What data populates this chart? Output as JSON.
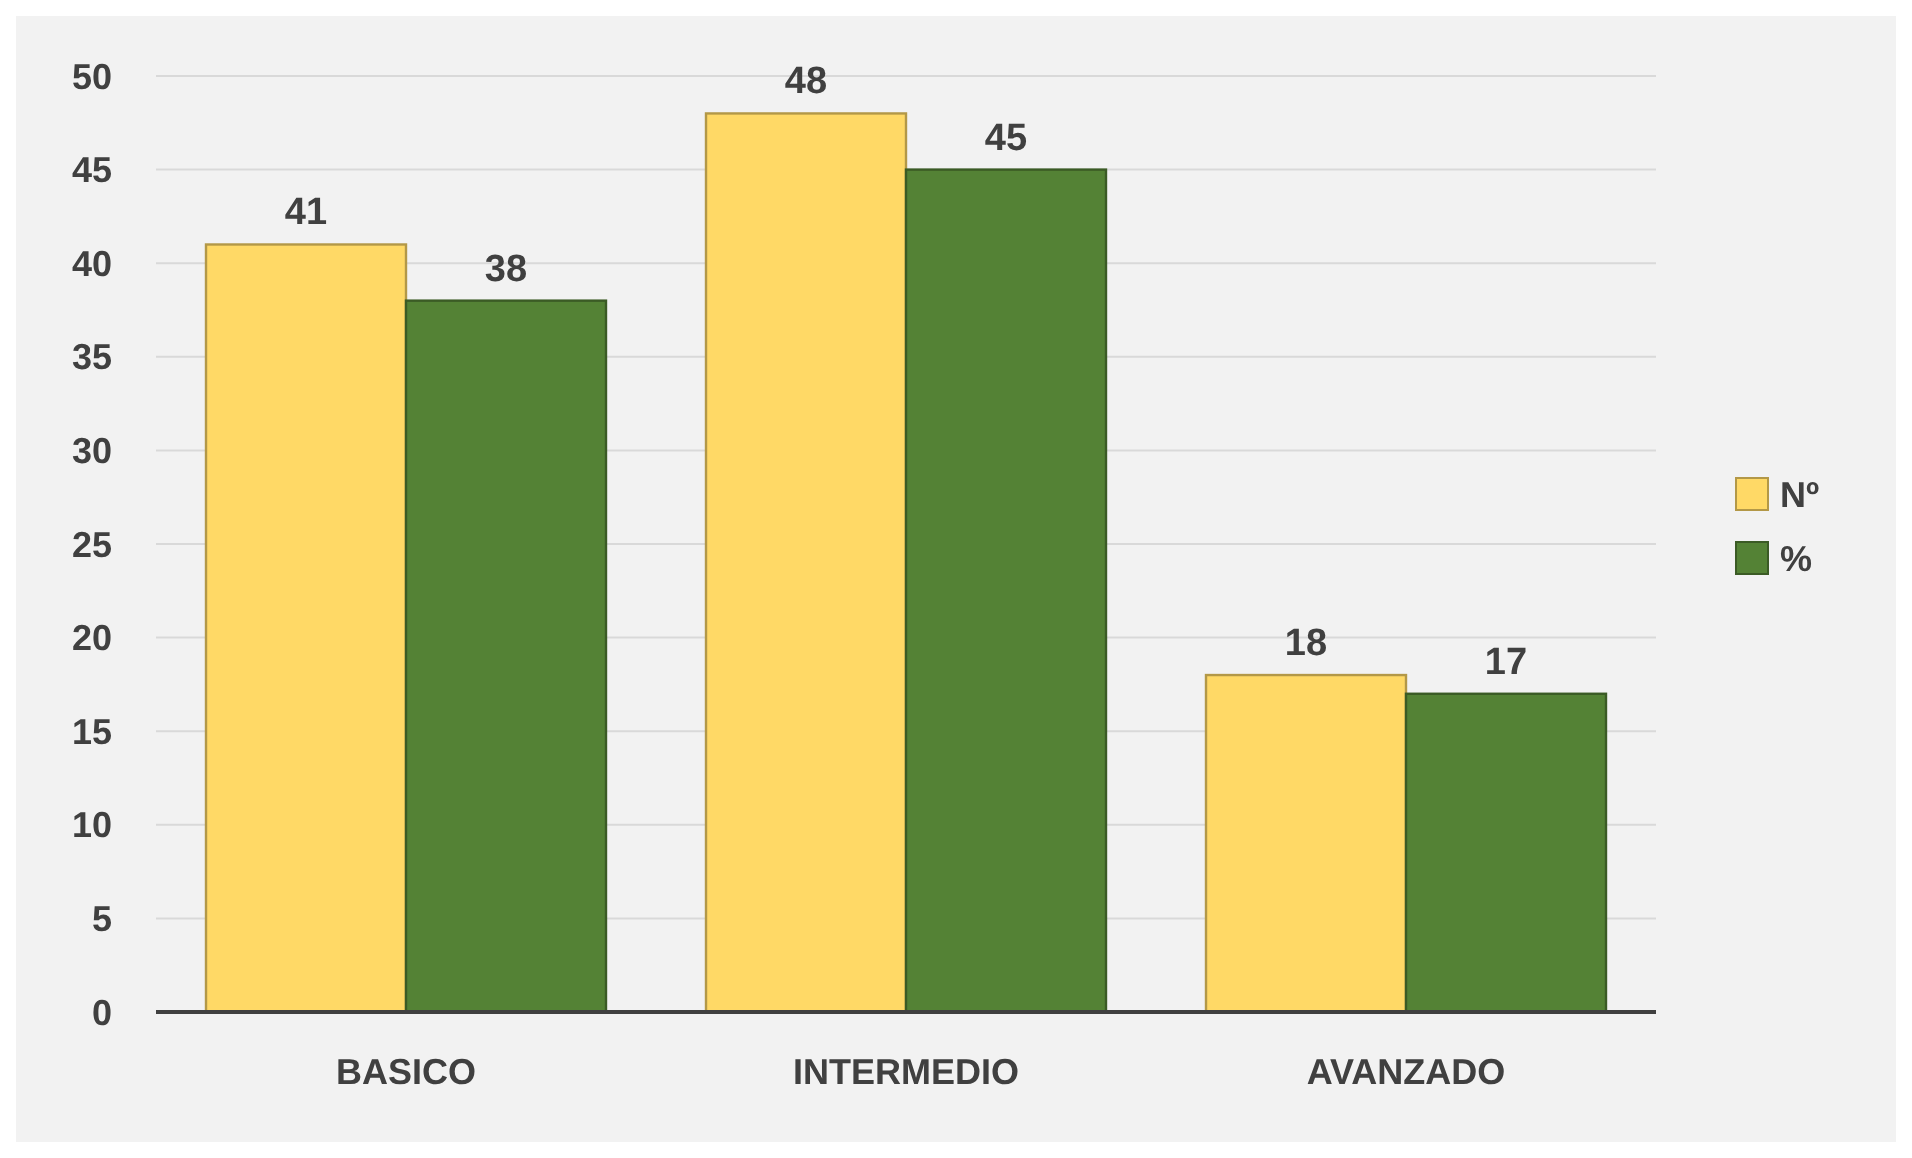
{
  "chart_data": {
    "type": "bar",
    "categories": [
      "BASICO",
      "INTERMEDIO",
      "AVANZADO"
    ],
    "series": [
      {
        "name": "Nº",
        "color": "#ffd966",
        "values": [
          41,
          48,
          18
        ]
      },
      {
        "name": "%",
        "color": "#548235",
        "values": [
          38,
          45,
          17
        ]
      }
    ],
    "ylim": [
      0,
      50
    ],
    "yticks": [
      0,
      5,
      10,
      15,
      20,
      25,
      30,
      35,
      40,
      45,
      50
    ],
    "grid": "y",
    "legend": "right",
    "data_labels": true
  }
}
